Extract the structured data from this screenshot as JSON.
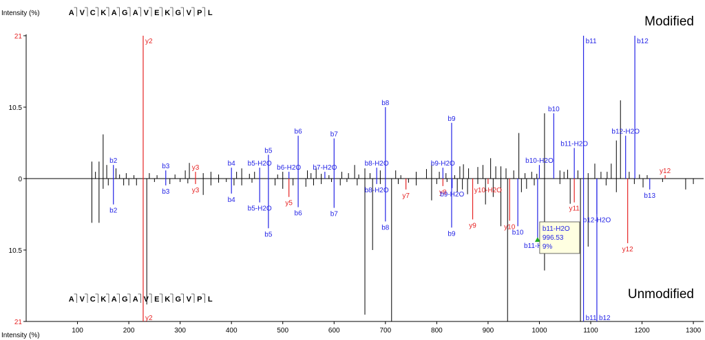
{
  "chart_data": {
    "type": "bar",
    "title_top": "Modified",
    "title_bottom": "Unmodified",
    "ylabel_top": "Intensity (%)",
    "ylabel_bottom": "Intensity (%)",
    "y_ticks_top": [
      "21",
      "10.5",
      "0"
    ],
    "y_ticks_bottom": [
      "10.5",
      "21"
    ],
    "ylim": [
      -21,
      21
    ],
    "xlim": [
      0,
      1320
    ],
    "x_ticks": [
      100,
      200,
      300,
      400,
      500,
      600,
      700,
      800,
      900,
      1000,
      1100,
      1200,
      1300
    ],
    "sequence_top": [
      "A",
      "V",
      "C",
      "K",
      "A",
      "G",
      "A",
      "V",
      "E",
      "K",
      "G",
      "V",
      "P",
      "L"
    ],
    "sequence_bottom": [
      "A",
      "V",
      "C",
      "K",
      "A",
      "G",
      "A",
      "V",
      "E",
      "K",
      "G",
      "V",
      "P",
      "L"
    ],
    "colors": {
      "b_ion": "#2323e6",
      "y_ion": "#e62323",
      "other": "#000000"
    },
    "annotated_top": [
      {
        "x": 228,
        "y": 21,
        "label": "y2",
        "ion": "y"
      },
      {
        "x": 170,
        "y": 2,
        "label": "b2",
        "ion": "b"
      },
      {
        "x": 272,
        "y": 1.2,
        "label": "b3",
        "ion": "b"
      },
      {
        "x": 330,
        "y": 1,
        "label": "y3",
        "ion": "y"
      },
      {
        "x": 400,
        "y": 1.6,
        "label": "b4",
        "ion": "b"
      },
      {
        "x": 455,
        "y": 1.6,
        "label": "b5-H2O",
        "ion": "b"
      },
      {
        "x": 472,
        "y": 3.5,
        "label": "b5",
        "ion": "b"
      },
      {
        "x": 512,
        "y": 1,
        "label": "b6-H2O",
        "ion": "b"
      },
      {
        "x": 530,
        "y": 6.3,
        "label": "b6",
        "ion": "b"
      },
      {
        "x": 582,
        "y": 1,
        "label": "b7-H2O",
        "ion": "b"
      },
      {
        "x": 600,
        "y": 5.9,
        "label": "b7",
        "ion": "b"
      },
      {
        "x": 683,
        "y": 1.6,
        "label": "b8-H2O",
        "ion": "b"
      },
      {
        "x": 700,
        "y": 10.5,
        "label": "b8",
        "ion": "b"
      },
      {
        "x": 812,
        "y": 1.6,
        "label": "b9-H2O",
        "ion": "b"
      },
      {
        "x": 829,
        "y": 8.2,
        "label": "b9",
        "ion": "b"
      },
      {
        "x": 1000,
        "y": 2,
        "label": "b10-H2O",
        "ion": "b"
      },
      {
        "x": 1028,
        "y": 9.6,
        "label": "b10",
        "ion": "b"
      },
      {
        "x": 1068,
        "y": 4.5,
        "label": "b11-H2O",
        "ion": "b"
      },
      {
        "x": 1086,
        "y": 21,
        "label": "b11",
        "ion": "b"
      },
      {
        "x": 1168,
        "y": 6.3,
        "label": "b12-H2O",
        "ion": "b"
      },
      {
        "x": 1186,
        "y": 21,
        "label": "b12",
        "ion": "b"
      },
      {
        "x": 1245,
        "y": 0.5,
        "label": "y12",
        "ion": "y"
      }
    ],
    "annotated_bottom": [
      {
        "x": 228,
        "y": 21,
        "label": "y2",
        "ion": "y"
      },
      {
        "x": 170,
        "y": 3.8,
        "label": "b2",
        "ion": "b"
      },
      {
        "x": 272,
        "y": 1,
        "label": "b3",
        "ion": "b"
      },
      {
        "x": 330,
        "y": 0.8,
        "label": "y3",
        "ion": "y"
      },
      {
        "x": 400,
        "y": 2.2,
        "label": "b4",
        "ion": "b"
      },
      {
        "x": 455,
        "y": 3.5,
        "label": "b5-H2O",
        "ion": "b"
      },
      {
        "x": 472,
        "y": 7.3,
        "label": "b5",
        "ion": "b"
      },
      {
        "x": 512,
        "y": 2.7,
        "label": "y5",
        "ion": "y"
      },
      {
        "x": 530,
        "y": 4.2,
        "label": "b6",
        "ion": "b"
      },
      {
        "x": 600,
        "y": 4.3,
        "label": "b7",
        "ion": "b"
      },
      {
        "x": 683,
        "y": 0.8,
        "label": "b8-H2O",
        "ion": "b"
      },
      {
        "x": 700,
        "y": 6.3,
        "label": "b8",
        "ion": "b"
      },
      {
        "x": 740,
        "y": 1.6,
        "label": "y7",
        "ion": "y"
      },
      {
        "x": 812,
        "y": 1.1,
        "label": "y8",
        "ion": "y"
      },
      {
        "x": 830,
        "y": 1.4,
        "label": "b9-H2O",
        "ion": "b"
      },
      {
        "x": 829,
        "y": 7.2,
        "label": "b9",
        "ion": "b"
      },
      {
        "x": 870,
        "y": 6,
        "label": "y9",
        "ion": "y"
      },
      {
        "x": 900,
        "y": 0.8,
        "label": "y10-H2O",
        "ion": "y"
      },
      {
        "x": 942,
        "y": 6.2,
        "label": "y10",
        "ion": "y"
      },
      {
        "x": 958,
        "y": 7,
        "label": "b10",
        "ion": "b"
      },
      {
        "x": 996.53,
        "y": 9,
        "label": "b11-H2O",
        "ion": "b"
      },
      {
        "x": 1068,
        "y": 3.5,
        "label": "y11",
        "ion": "y"
      },
      {
        "x": 1086,
        "y": 21,
        "label": "b11",
        "ion": "b"
      },
      {
        "x": 1112,
        "y": 5.2,
        "label": "b12-H2O",
        "ion": "b"
      },
      {
        "x": 1112,
        "y": 21,
        "label": "b12",
        "ion": "b"
      },
      {
        "x": 1172,
        "y": 9.5,
        "label": "y12",
        "ion": "y"
      },
      {
        "x": 1215,
        "y": 1.6,
        "label": "b13",
        "ion": "b"
      }
    ],
    "unannotated_top": [
      [
        128,
        2.5
      ],
      [
        135,
        1
      ],
      [
        142,
        2.5
      ],
      [
        150,
        6.5
      ],
      [
        157,
        2
      ],
      [
        175,
        1.5
      ],
      [
        182,
        0.6
      ],
      [
        195,
        0.8
      ],
      [
        210,
        0.5
      ],
      [
        240,
        0.8
      ],
      [
        255,
        0.5
      ],
      [
        290,
        0.6
      ],
      [
        310,
        1.2
      ],
      [
        318,
        2.3
      ],
      [
        345,
        0.8
      ],
      [
        360,
        1
      ],
      [
        375,
        0.6
      ],
      [
        410,
        1
      ],
      [
        420,
        1.5
      ],
      [
        435,
        0.7
      ],
      [
        445,
        1
      ],
      [
        490,
        0.6
      ],
      [
        500,
        1
      ],
      [
        548,
        1.2
      ],
      [
        555,
        0.8
      ],
      [
        565,
        1.6
      ],
      [
        575,
        0.7
      ],
      [
        590,
        0.5
      ],
      [
        615,
        1
      ],
      [
        628,
        0.8
      ],
      [
        640,
        2
      ],
      [
        648,
        0.6
      ],
      [
        660,
        1.5
      ],
      [
        670,
        0.8
      ],
      [
        690,
        1.2
      ],
      [
        720,
        1.2
      ],
      [
        730,
        0.5
      ],
      [
        760,
        1
      ],
      [
        780,
        1.4
      ],
      [
        790,
        2.3
      ],
      [
        805,
        1
      ],
      [
        818,
        0.8
      ],
      [
        835,
        0.5
      ],
      [
        845,
        1.8
      ],
      [
        852,
        2.1
      ],
      [
        862,
        1.5
      ],
      [
        880,
        1.7
      ],
      [
        890,
        2
      ],
      [
        905,
        3
      ],
      [
        915,
        1.8
      ],
      [
        925,
        1.8
      ],
      [
        935,
        1.5
      ],
      [
        950,
        1.2
      ],
      [
        960,
        6.7
      ],
      [
        972,
        0.8
      ],
      [
        985,
        1
      ],
      [
        995,
        0.7
      ],
      [
        1010,
        9.6
      ],
      [
        1040,
        1.2
      ],
      [
        1048,
        1
      ],
      [
        1055,
        1.3
      ],
      [
        1075,
        1.2
      ],
      [
        1095,
        0.8
      ],
      [
        1108,
        2.2
      ],
      [
        1120,
        1
      ],
      [
        1132,
        1
      ],
      [
        1140,
        2.2
      ],
      [
        1150,
        5.6
      ],
      [
        1158,
        11.5
      ],
      [
        1175,
        1
      ],
      [
        1195,
        0.6
      ],
      [
        1210,
        0.5
      ]
    ],
    "unannotated_bottom": [
      [
        128,
        6.5
      ],
      [
        142,
        6.5
      ],
      [
        150,
        1.5
      ],
      [
        160,
        1
      ],
      [
        190,
        1
      ],
      [
        200,
        1
      ],
      [
        215,
        1
      ],
      [
        235,
        18.5
      ],
      [
        250,
        0.5
      ],
      [
        280,
        0.8
      ],
      [
        300,
        0.5
      ],
      [
        315,
        0.7
      ],
      [
        345,
        2.4
      ],
      [
        360,
        1
      ],
      [
        375,
        0.6
      ],
      [
        390,
        0.5
      ],
      [
        405,
        1
      ],
      [
        420,
        1
      ],
      [
        440,
        0.6
      ],
      [
        485,
        1
      ],
      [
        500,
        1.5
      ],
      [
        520,
        1
      ],
      [
        545,
        1.2
      ],
      [
        560,
        1
      ],
      [
        575,
        0.8
      ],
      [
        595,
        0.5
      ],
      [
        612,
        1
      ],
      [
        625,
        0.5
      ],
      [
        645,
        1
      ],
      [
        660,
        20
      ],
      [
        675,
        10.5
      ],
      [
        690,
        0.8
      ],
      [
        712,
        23.5
      ],
      [
        725,
        0.8
      ],
      [
        745,
        0.6
      ],
      [
        760,
        1
      ],
      [
        790,
        3.2
      ],
      [
        800,
        0.8
      ],
      [
        820,
        0.5
      ],
      [
        840,
        2
      ],
      [
        850,
        1.6
      ],
      [
        860,
        2.3
      ],
      [
        880,
        0.8
      ],
      [
        895,
        3.8
      ],
      [
        910,
        2.7
      ],
      [
        925,
        7
      ],
      [
        938,
        36
      ],
      [
        965,
        2
      ],
      [
        975,
        1.5
      ],
      [
        990,
        1
      ],
      [
        1010,
        13.5
      ],
      [
        1040,
        0.8
      ],
      [
        1060,
        3.7
      ],
      [
        1080,
        42
      ],
      [
        1095,
        10
      ],
      [
        1130,
        1
      ],
      [
        1150,
        2
      ],
      [
        1185,
        0.8
      ],
      [
        1202,
        1.3
      ],
      [
        1240,
        0.5
      ],
      [
        1285,
        1.6
      ],
      [
        1300,
        0.8
      ]
    ],
    "tooltip": {
      "label": "b11-H2O",
      "mz": "996.53",
      "intensity": "9%"
    }
  }
}
